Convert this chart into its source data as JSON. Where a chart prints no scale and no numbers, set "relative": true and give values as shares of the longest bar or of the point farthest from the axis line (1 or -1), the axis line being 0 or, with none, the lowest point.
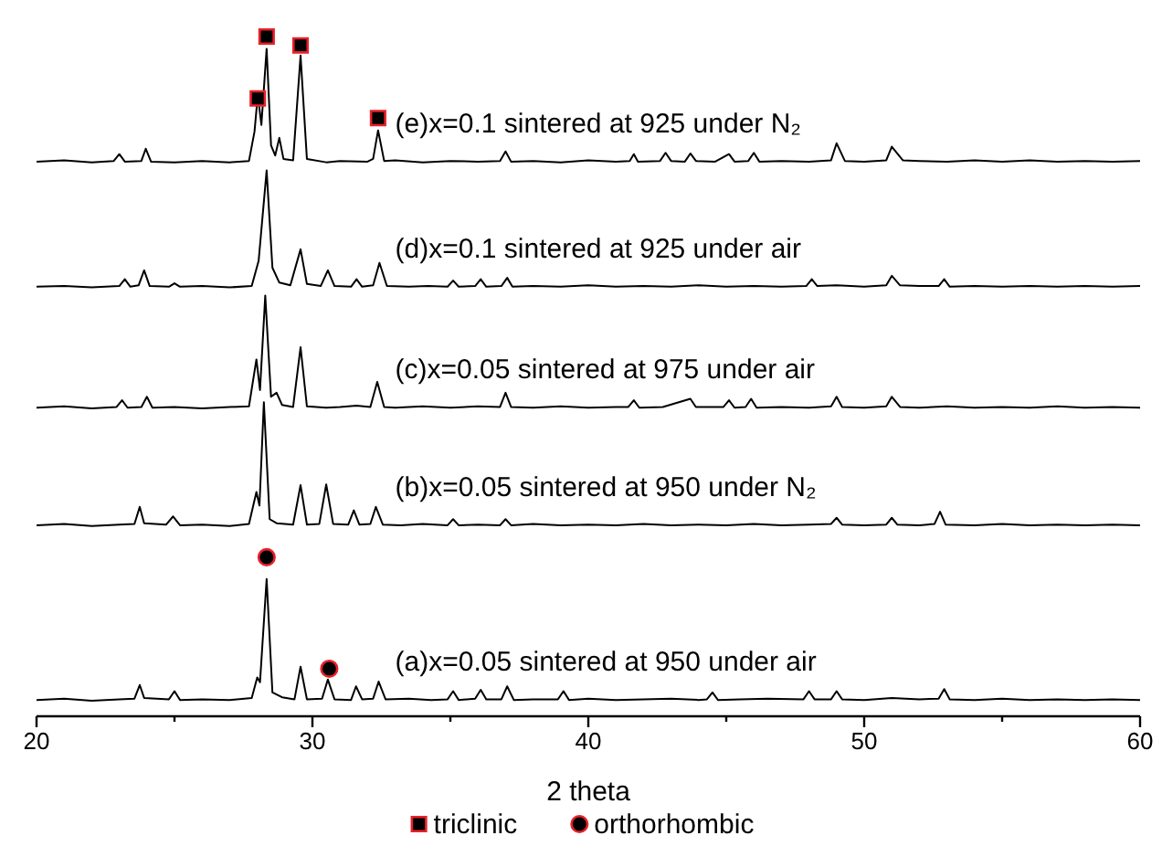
{
  "chart_data": {
    "type": "line",
    "relative": true,
    "xlabel": "2 theta",
    "xlim": [
      20,
      60
    ],
    "xticks": [
      20,
      {
        "value": 25,
        "label": null
      },
      30,
      {
        "value": 35,
        "label": null
      },
      40,
      {
        "value": 45,
        "label": null
      },
      50,
      {
        "value": 55,
        "label": null
      },
      60
    ],
    "tick_labels": "x",
    "legend": "bottom",
    "marker": "none",
    "series": [
      {
        "name": "(e)x=0.1 sintered at 925 under N₂",
        "color": "#000000",
        "x": [
          20,
          21,
          22,
          22.8,
          23.0,
          23.2,
          23.8,
          23.96,
          24.15,
          25,
          26,
          27,
          27.7,
          27.9,
          28.02,
          28.15,
          28.34,
          28.5,
          28.65,
          28.8,
          28.95,
          29.3,
          29.57,
          29.8,
          30.5,
          31,
          32,
          32.2,
          32.38,
          32.6,
          33,
          34,
          35,
          36,
          36.8,
          37.0,
          37.2,
          38,
          39,
          40,
          41,
          41.5,
          41.65,
          41.8,
          42.6,
          42.8,
          43.0,
          43.5,
          43.7,
          43.9,
          44.6,
          45.1,
          45.3,
          45.8,
          46.0,
          46.2,
          47,
          48,
          48.8,
          49.0,
          49.3,
          50,
          50.8,
          51.0,
          51.4,
          52,
          53,
          54,
          55,
          56,
          57,
          58,
          59,
          60
        ],
        "values": [
          0.816,
          0.818,
          0.815,
          0.817,
          0.827,
          0.816,
          0.817,
          0.835,
          0.816,
          0.815,
          0.817,
          0.815,
          0.817,
          0.86,
          0.914,
          0.87,
          0.982,
          0.84,
          0.825,
          0.851,
          0.82,
          0.818,
          0.972,
          0.82,
          0.815,
          0.817,
          0.816,
          0.82,
          0.862,
          0.817,
          0.818,
          0.815,
          0.817,
          0.816,
          0.817,
          0.831,
          0.816,
          0.817,
          0.815,
          0.818,
          0.816,
          0.817,
          0.827,
          0.816,
          0.817,
          0.829,
          0.817,
          0.816,
          0.828,
          0.817,
          0.816,
          0.827,
          0.816,
          0.817,
          0.829,
          0.816,
          0.817,
          0.816,
          0.818,
          0.843,
          0.817,
          0.816,
          0.818,
          0.838,
          0.818,
          0.817,
          0.816,
          0.818,
          0.816,
          0.818,
          0.816,
          0.817,
          0.816,
          0.817
        ]
      },
      {
        "name": "(d)x=0.1 sintered at 925 under air",
        "color": "#000000",
        "x": [
          20,
          21,
          22,
          23,
          23.2,
          23.4,
          23.7,
          23.9,
          24.1,
          24.8,
          25.0,
          25.2,
          26,
          27,
          27.8,
          28.05,
          28.34,
          28.55,
          28.8,
          29.2,
          29.57,
          29.8,
          30.3,
          30.56,
          30.8,
          31.4,
          31.6,
          31.8,
          32.2,
          32.43,
          32.7,
          33.5,
          34.2,
          34.9,
          35.1,
          35.3,
          35.9,
          36.1,
          36.3,
          36.85,
          37.06,
          37.25,
          38,
          39,
          40,
          41,
          42,
          43,
          44,
          45,
          46,
          47,
          47.9,
          48.1,
          48.3,
          49,
          50,
          50.8,
          51.0,
          51.3,
          52,
          52.7,
          52.9,
          53.1,
          54,
          55,
          56,
          57,
          58,
          59,
          60
        ],
        "values": [
          0.632,
          0.633,
          0.631,
          0.633,
          0.643,
          0.632,
          0.634,
          0.656,
          0.633,
          0.632,
          0.637,
          0.632,
          0.633,
          0.631,
          0.633,
          0.67,
          0.803,
          0.66,
          0.638,
          0.634,
          0.687,
          0.636,
          0.633,
          0.656,
          0.633,
          0.632,
          0.643,
          0.632,
          0.634,
          0.667,
          0.633,
          0.632,
          0.633,
          0.632,
          0.641,
          0.632,
          0.633,
          0.643,
          0.632,
          0.633,
          0.645,
          0.632,
          0.633,
          0.632,
          0.634,
          0.632,
          0.633,
          0.632,
          0.634,
          0.632,
          0.633,
          0.632,
          0.633,
          0.643,
          0.633,
          0.634,
          0.632,
          0.634,
          0.648,
          0.634,
          0.633,
          0.633,
          0.643,
          0.632,
          0.633,
          0.632,
          0.633,
          0.632,
          0.633,
          0.632,
          0.633
        ]
      },
      {
        "name": "(c)x=0.05 sintered at 975 under air",
        "color": "#000000",
        "x": [
          20,
          21,
          22,
          22.9,
          23.1,
          23.3,
          23.8,
          24.0,
          24.2,
          25,
          26,
          27,
          27.7,
          27.97,
          28.1,
          28.29,
          28.5,
          28.7,
          28.9,
          29.3,
          29.57,
          29.8,
          30.5,
          31,
          31.6,
          32.1,
          32.35,
          32.6,
          33,
          34,
          35,
          36,
          36.8,
          37.0,
          37.2,
          38,
          39,
          40,
          41,
          41.45,
          41.65,
          41.85,
          42.7,
          43.7,
          43.9,
          44.9,
          45.1,
          45.3,
          45.7,
          45.9,
          46.1,
          47,
          48,
          48.8,
          49.0,
          49.2,
          50,
          50.8,
          51.0,
          51.3,
          52,
          53,
          54,
          55,
          56,
          57,
          58,
          59,
          60
        ],
        "values": [
          0.454,
          0.456,
          0.453,
          0.455,
          0.465,
          0.454,
          0.455,
          0.47,
          0.454,
          0.455,
          0.453,
          0.455,
          0.456,
          0.525,
          0.48,
          0.619,
          0.47,
          0.476,
          0.458,
          0.455,
          0.543,
          0.456,
          0.454,
          0.455,
          0.457,
          0.455,
          0.492,
          0.455,
          0.454,
          0.456,
          0.454,
          0.456,
          0.455,
          0.476,
          0.455,
          0.454,
          0.456,
          0.454,
          0.455,
          0.455,
          0.465,
          0.454,
          0.455,
          0.467,
          0.455,
          0.455,
          0.465,
          0.454,
          0.455,
          0.467,
          0.454,
          0.455,
          0.454,
          0.456,
          0.47,
          0.455,
          0.454,
          0.456,
          0.47,
          0.455,
          0.454,
          0.456,
          0.454,
          0.455,
          0.454,
          0.456,
          0.454,
          0.455,
          0.454
        ]
      },
      {
        "name": "(b)x=0.05 sintered at 950 under N₂",
        "color": "#000000",
        "x": [
          20,
          21,
          22,
          23,
          23.55,
          23.74,
          23.9,
          24.7,
          24.95,
          25.2,
          26,
          27,
          27.7,
          27.97,
          28.08,
          28.24,
          28.45,
          28.7,
          29.3,
          29.57,
          29.8,
          30.25,
          30.5,
          30.75,
          31.3,
          31.5,
          31.7,
          32.1,
          32.3,
          32.55,
          33.2,
          34,
          34.9,
          35.1,
          35.3,
          36,
          36.8,
          37.0,
          37.2,
          38,
          39,
          40,
          41,
          42,
          43,
          44,
          45,
          46,
          47,
          48,
          48.8,
          49.0,
          49.2,
          50,
          50.8,
          51.0,
          51.2,
          52,
          52.55,
          52.75,
          52.95,
          54,
          55,
          56,
          57,
          58,
          59,
          60
        ],
        "values": [
          0.281,
          0.283,
          0.28,
          0.282,
          0.283,
          0.308,
          0.284,
          0.282,
          0.294,
          0.281,
          0.282,
          0.28,
          0.283,
          0.33,
          0.31,
          0.462,
          0.29,
          0.284,
          0.282,
          0.34,
          0.282,
          0.283,
          0.341,
          0.283,
          0.282,
          0.303,
          0.282,
          0.283,
          0.308,
          0.282,
          0.281,
          0.283,
          0.281,
          0.29,
          0.281,
          0.282,
          0.281,
          0.29,
          0.281,
          0.283,
          0.281,
          0.282,
          0.281,
          0.283,
          0.281,
          0.282,
          0.281,
          0.283,
          0.281,
          0.282,
          0.283,
          0.292,
          0.282,
          0.281,
          0.282,
          0.292,
          0.282,
          0.281,
          0.283,
          0.301,
          0.282,
          0.281,
          0.283,
          0.281,
          0.282,
          0.281,
          0.282,
          0.281
        ]
      },
      {
        "name": "(a)x=0.05 sintered at 950 under air",
        "color": "#000000",
        "x": [
          20,
          21,
          22,
          23,
          23.55,
          23.74,
          23.9,
          24.8,
          25.0,
          25.2,
          26,
          27,
          27.8,
          28.0,
          28.1,
          28.34,
          28.55,
          28.9,
          29.35,
          29.57,
          29.8,
          30.35,
          30.56,
          30.8,
          31.4,
          31.58,
          31.8,
          32.2,
          32.4,
          32.65,
          33.5,
          34.3,
          34.9,
          35.1,
          35.3,
          35.9,
          36.1,
          36.3,
          36.85,
          37.06,
          37.3,
          38,
          38.9,
          39.1,
          39.3,
          40,
          41,
          42,
          43,
          44,
          44.3,
          44.5,
          44.7,
          45.5,
          46.5,
          47.8,
          48.0,
          48.2,
          48.8,
          49.0,
          49.2,
          50,
          51,
          52,
          52.7,
          52.9,
          53.1,
          54,
          55,
          56,
          57,
          58,
          59,
          60
        ],
        "values": [
          0.024,
          0.026,
          0.023,
          0.025,
          0.026,
          0.046,
          0.027,
          0.025,
          0.037,
          0.024,
          0.025,
          0.024,
          0.027,
          0.057,
          0.05,
          0.202,
          0.035,
          0.028,
          0.025,
          0.073,
          0.025,
          0.026,
          0.054,
          0.025,
          0.024,
          0.044,
          0.025,
          0.026,
          0.051,
          0.025,
          0.026,
          0.024,
          0.025,
          0.037,
          0.024,
          0.026,
          0.039,
          0.025,
          0.025,
          0.044,
          0.024,
          0.025,
          0.025,
          0.037,
          0.024,
          0.026,
          0.024,
          0.025,
          0.026,
          0.024,
          0.025,
          0.035,
          0.024,
          0.025,
          0.026,
          0.025,
          0.037,
          0.025,
          0.025,
          0.037,
          0.025,
          0.024,
          0.027,
          0.025,
          0.026,
          0.04,
          0.025,
          0.024,
          0.026,
          0.024,
          0.025,
          0.024,
          0.025,
          0.024
        ]
      },
      {
        "type": "scatter",
        "name": "triclinic",
        "color": "#000000",
        "marker": "square",
        "x": [
          28.02,
          28.34,
          29.57,
          32.38
        ],
        "values": [
          0.909,
          1.0,
          0.987,
          0.88
        ]
      },
      {
        "type": "scatter",
        "name": "orthorhombic",
        "color": "#000000",
        "marker": "circle",
        "x": [
          28.34,
          30.61
        ],
        "values": [
          0.234,
          0.07
        ]
      }
    ]
  }
}
